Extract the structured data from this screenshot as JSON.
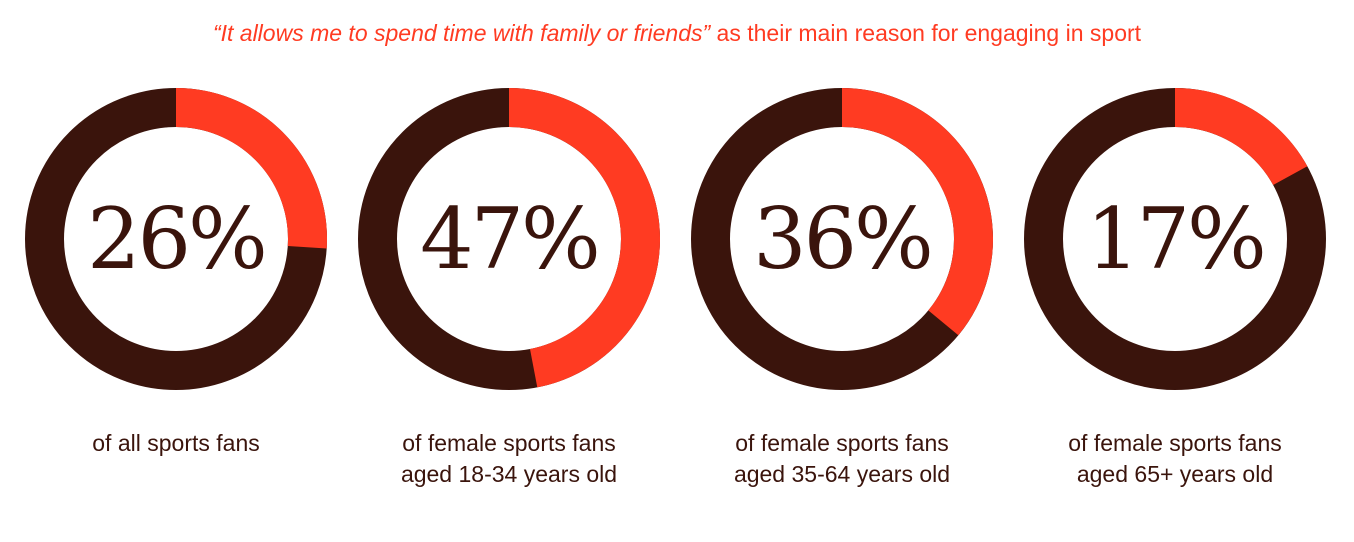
{
  "title": {
    "quote": "“It allows me to spend time with family or friends”",
    "rest": " as their main reason for engaging in sport"
  },
  "colors": {
    "accent": "#ff3b22",
    "track": "#3a140c",
    "text": "#3a140c"
  },
  "chart_data": [
    {
      "type": "pie",
      "style": "donut",
      "value": 26,
      "label": "26%",
      "caption": "of all sports fans"
    },
    {
      "type": "pie",
      "style": "donut",
      "value": 47,
      "label": "47%",
      "caption": "of female sports fans aged 18-34 years old"
    },
    {
      "type": "pie",
      "style": "donut",
      "value": 36,
      "label": "36%",
      "caption": "of female sports fans aged 35-64 years old"
    },
    {
      "type": "pie",
      "style": "donut",
      "value": 17,
      "label": "17%",
      "caption": "of female sports fans aged 65+ years old"
    }
  ]
}
